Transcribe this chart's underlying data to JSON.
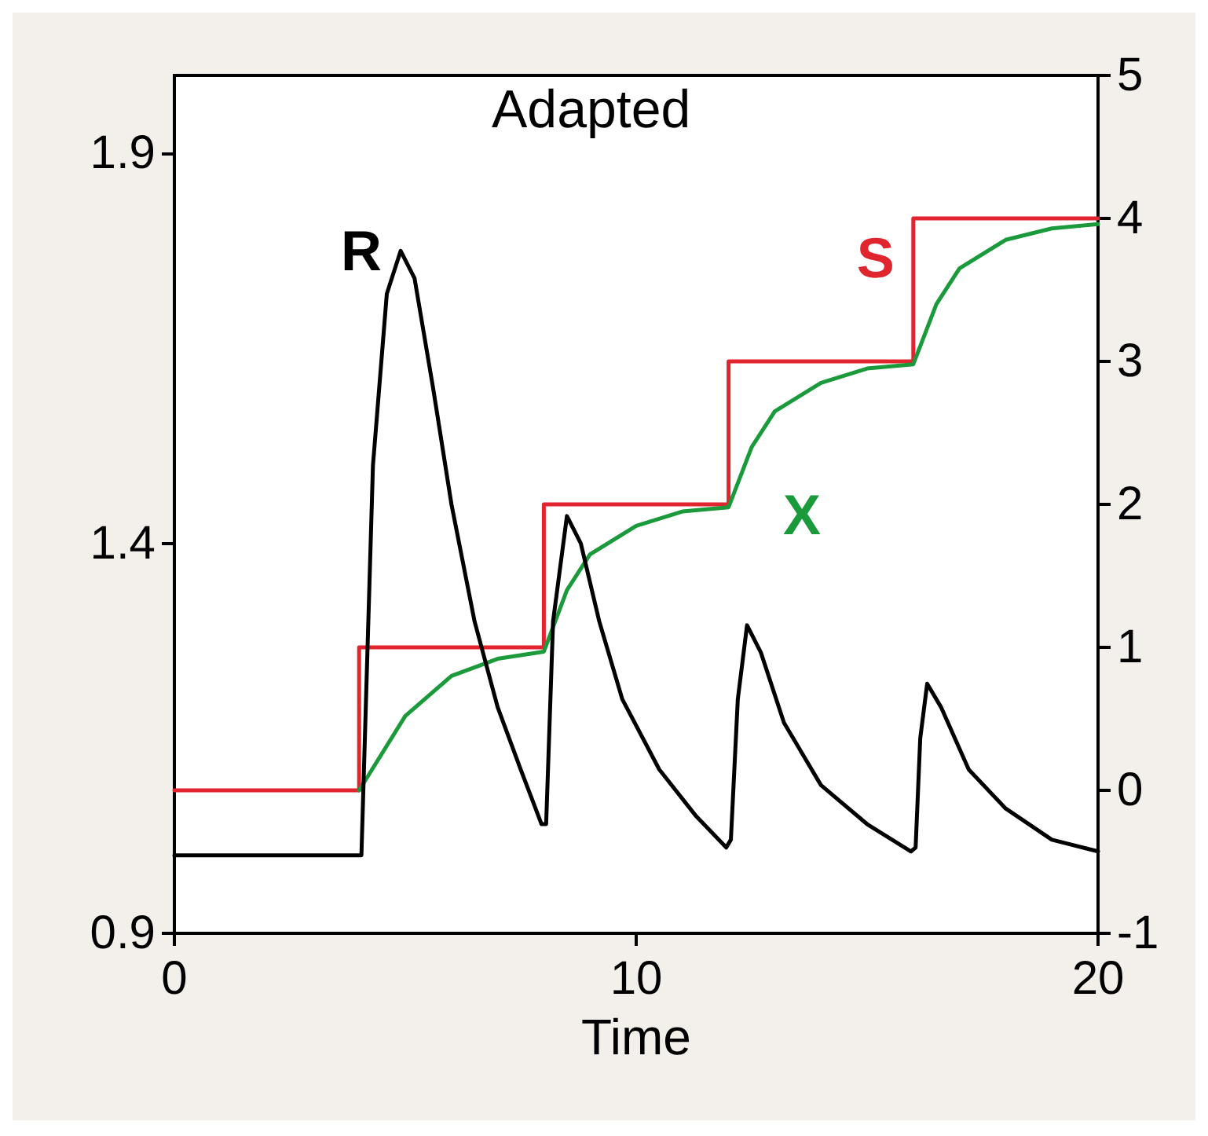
{
  "chart_data": {
    "type": "line",
    "title": "Adapted",
    "xlabel": "Time",
    "xlim": [
      0,
      20
    ],
    "xticks": [
      0,
      10,
      20
    ],
    "ylim": [
      0.9,
      2.0
    ],
    "yticks": [
      0.9,
      1.4,
      1.9
    ],
    "y2lim": [
      -1,
      5
    ],
    "y2ticks": [
      -1,
      0,
      1,
      2,
      3,
      4,
      5
    ],
    "grid": false,
    "legend": false,
    "marker": "none",
    "line_style": "solid",
    "series": [
      {
        "name": "R",
        "color": "#000000",
        "x": [
          0,
          4,
          4.05,
          4.3,
          4.6,
          4.9,
          5.2,
          5.6,
          6.0,
          6.5,
          7.0,
          7.5,
          7.95,
          8.05,
          8.2,
          8.5,
          8.8,
          9.2,
          9.7,
          10.5,
          11.3,
          11.95,
          12.05,
          12.2,
          12.4,
          12.7,
          13.2,
          14,
          15,
          15.95,
          16.05,
          16.15,
          16.3,
          16.6,
          17.2,
          18,
          19,
          20
        ],
        "values": [
          1.0,
          1.0,
          1.0,
          1.5,
          1.72,
          1.775,
          1.74,
          1.6,
          1.45,
          1.3,
          1.19,
          1.11,
          1.04,
          1.04,
          1.3,
          1.435,
          1.4,
          1.3,
          1.2,
          1.11,
          1.05,
          1.01,
          1.02,
          1.2,
          1.295,
          1.26,
          1.17,
          1.09,
          1.04,
          1.005,
          1.01,
          1.15,
          1.22,
          1.19,
          1.11,
          1.06,
          1.02,
          1.005
        ]
      },
      {
        "name": "S",
        "type": "step",
        "axis": "y2",
        "color": "#e0252f",
        "x": [
          0,
          4,
          8,
          12,
          16,
          20
        ],
        "values": [
          0,
          1,
          2,
          3,
          4,
          4
        ]
      },
      {
        "name": "X",
        "axis": "y2",
        "color": "#1a9a3a",
        "x": [
          4,
          5,
          6,
          7,
          8,
          8.5,
          9,
          10,
          11,
          12,
          12.5,
          13,
          14,
          15,
          16,
          16.5,
          17,
          18,
          19,
          20
        ],
        "values": [
          0,
          0.52,
          0.8,
          0.92,
          0.97,
          1.4,
          1.65,
          1.85,
          1.95,
          1.98,
          2.4,
          2.65,
          2.85,
          2.95,
          2.98,
          3.4,
          3.65,
          3.85,
          3.93,
          3.96
        ]
      }
    ]
  }
}
